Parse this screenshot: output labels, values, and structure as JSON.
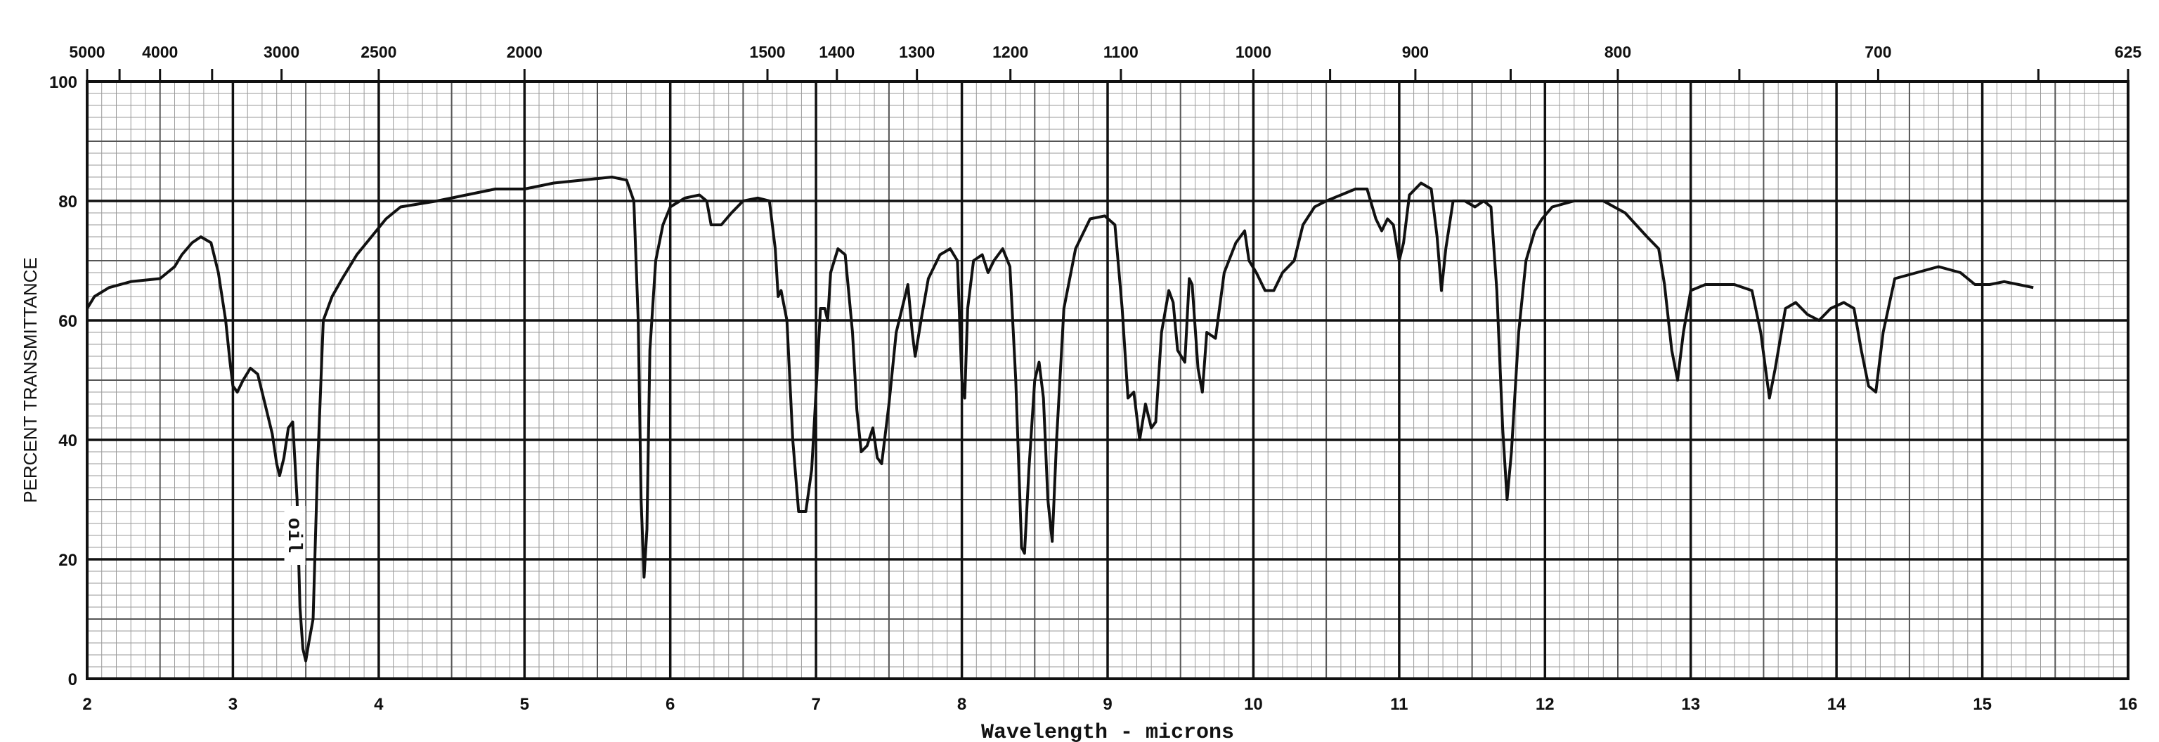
{
  "chart_data": {
    "type": "line",
    "title": "",
    "xlabel": "Wavelength - microns",
    "ylabel": "PERCENT TRANSMITTANCE",
    "xlim": [
      2,
      16
    ],
    "ylim": [
      0,
      100
    ],
    "grid": true,
    "x_ticks": [
      "2",
      "3",
      "4",
      "5",
      "6",
      "7",
      "8",
      "9",
      "10",
      "11",
      "12",
      "13",
      "14",
      "15",
      "16"
    ],
    "y_ticks": [
      "0",
      "20",
      "40",
      "60",
      "80",
      "100"
    ],
    "top_axis": {
      "label": "",
      "labels": [
        "5000",
        "4000",
        "3000",
        "2500",
        "2000",
        "1500",
        "1400",
        "1300",
        "1200",
        "1100",
        "1000",
        "900",
        "800",
        "700",
        "625"
      ]
    },
    "annotation": "oil",
    "series": [
      {
        "name": "",
        "color": "#111111",
        "points": [
          [
            2.0,
            62
          ],
          [
            2.05,
            64
          ],
          [
            2.15,
            65.5
          ],
          [
            2.3,
            66.5
          ],
          [
            2.5,
            67
          ],
          [
            2.6,
            69
          ],
          [
            2.65,
            71
          ],
          [
            2.72,
            73
          ],
          [
            2.78,
            74
          ],
          [
            2.85,
            73
          ],
          [
            2.9,
            68
          ],
          [
            2.95,
            60
          ],
          [
            2.98,
            53
          ],
          [
            3.0,
            49
          ],
          [
            3.03,
            48
          ],
          [
            3.07,
            50
          ],
          [
            3.12,
            52
          ],
          [
            3.17,
            51
          ],
          [
            3.22,
            46
          ],
          [
            3.27,
            41
          ],
          [
            3.3,
            36
          ],
          [
            3.32,
            34
          ],
          [
            3.35,
            37
          ],
          [
            3.38,
            42
          ],
          [
            3.41,
            43
          ],
          [
            3.44,
            30
          ],
          [
            3.46,
            12
          ],
          [
            3.48,
            5
          ],
          [
            3.5,
            3
          ],
          [
            3.52,
            6
          ],
          [
            3.55,
            10
          ],
          [
            3.58,
            35
          ],
          [
            3.62,
            60
          ],
          [
            3.68,
            64
          ],
          [
            3.75,
            67
          ],
          [
            3.85,
            71
          ],
          [
            3.95,
            74
          ],
          [
            4.05,
            77
          ],
          [
            4.15,
            79
          ],
          [
            4.4,
            80
          ],
          [
            4.6,
            81
          ],
          [
            4.8,
            82
          ],
          [
            5.0,
            82
          ],
          [
            5.2,
            83
          ],
          [
            5.4,
            83.5
          ],
          [
            5.6,
            84
          ],
          [
            5.7,
            83.5
          ],
          [
            5.75,
            80
          ],
          [
            5.78,
            60
          ],
          [
            5.8,
            30
          ],
          [
            5.82,
            17
          ],
          [
            5.84,
            25
          ],
          [
            5.86,
            55
          ],
          [
            5.9,
            70
          ],
          [
            5.95,
            76
          ],
          [
            6.0,
            79
          ],
          [
            6.1,
            80.5
          ],
          [
            6.2,
            81
          ],
          [
            6.25,
            80
          ],
          [
            6.28,
            76
          ],
          [
            6.35,
            76
          ],
          [
            6.42,
            78
          ],
          [
            6.5,
            80
          ],
          [
            6.6,
            80.5
          ],
          [
            6.68,
            80
          ],
          [
            6.72,
            72
          ],
          [
            6.74,
            64
          ],
          [
            6.76,
            65
          ],
          [
            6.8,
            60
          ],
          [
            6.84,
            40
          ],
          [
            6.88,
            28
          ],
          [
            6.93,
            28
          ],
          [
            6.97,
            35
          ],
          [
            7.0,
            48
          ],
          [
            7.03,
            62
          ],
          [
            7.06,
            62
          ],
          [
            7.08,
            60
          ],
          [
            7.1,
            68
          ],
          [
            7.15,
            72
          ],
          [
            7.2,
            71
          ],
          [
            7.25,
            58
          ],
          [
            7.28,
            45
          ],
          [
            7.31,
            38
          ],
          [
            7.35,
            39
          ],
          [
            7.39,
            42
          ],
          [
            7.42,
            37
          ],
          [
            7.45,
            36
          ],
          [
            7.5,
            46
          ],
          [
            7.55,
            58
          ],
          [
            7.6,
            63
          ],
          [
            7.63,
            66
          ],
          [
            7.66,
            58
          ],
          [
            7.68,
            54
          ],
          [
            7.72,
            60
          ],
          [
            7.77,
            67
          ],
          [
            7.85,
            71
          ],
          [
            7.92,
            72
          ],
          [
            7.97,
            70
          ],
          [
            8.0,
            50
          ],
          [
            8.02,
            47
          ],
          [
            8.04,
            62
          ],
          [
            8.08,
            70
          ],
          [
            8.14,
            71
          ],
          [
            8.18,
            68
          ],
          [
            8.22,
            70
          ],
          [
            8.28,
            72
          ],
          [
            8.33,
            69
          ],
          [
            8.37,
            50
          ],
          [
            8.41,
            22
          ],
          [
            8.43,
            21
          ],
          [
            8.46,
            35
          ],
          [
            8.5,
            50
          ],
          [
            8.53,
            53
          ],
          [
            8.56,
            47
          ],
          [
            8.59,
            30
          ],
          [
            8.62,
            23
          ],
          [
            8.65,
            40
          ],
          [
            8.7,
            62
          ],
          [
            8.78,
            72
          ],
          [
            8.88,
            77
          ],
          [
            8.98,
            77.5
          ],
          [
            9.05,
            76
          ],
          [
            9.1,
            62
          ],
          [
            9.14,
            47
          ],
          [
            9.18,
            48
          ],
          [
            9.22,
            40
          ],
          [
            9.26,
            46
          ],
          [
            9.3,
            42
          ],
          [
            9.33,
            43
          ],
          [
            9.37,
            58
          ],
          [
            9.42,
            65
          ],
          [
            9.45,
            63
          ],
          [
            9.48,
            55
          ],
          [
            9.53,
            53
          ],
          [
            9.56,
            67
          ],
          [
            9.58,
            66
          ],
          [
            9.62,
            52
          ],
          [
            9.65,
            48
          ],
          [
            9.68,
            58
          ],
          [
            9.74,
            57
          ],
          [
            9.8,
            68
          ],
          [
            9.88,
            73
          ],
          [
            9.94,
            75
          ],
          [
            9.97,
            70
          ],
          [
            10.02,
            68
          ],
          [
            10.08,
            65
          ],
          [
            10.14,
            65
          ],
          [
            10.2,
            68
          ],
          [
            10.28,
            70
          ],
          [
            10.34,
            76
          ],
          [
            10.42,
            79
          ],
          [
            10.5,
            80
          ],
          [
            10.6,
            81
          ],
          [
            10.7,
            82
          ],
          [
            10.78,
            82
          ],
          [
            10.84,
            77
          ],
          [
            10.88,
            75
          ],
          [
            10.92,
            77
          ],
          [
            10.96,
            76
          ],
          [
            11.0,
            70
          ],
          [
            11.03,
            73
          ],
          [
            11.07,
            81
          ],
          [
            11.15,
            83
          ],
          [
            11.22,
            82
          ],
          [
            11.26,
            74
          ],
          [
            11.29,
            65
          ],
          [
            11.32,
            72
          ],
          [
            11.37,
            80
          ],
          [
            11.45,
            80
          ],
          [
            11.52,
            79
          ],
          [
            11.58,
            80
          ],
          [
            11.63,
            79
          ],
          [
            11.67,
            65
          ],
          [
            11.71,
            42
          ],
          [
            11.74,
            30
          ],
          [
            11.77,
            38
          ],
          [
            11.82,
            58
          ],
          [
            11.87,
            70
          ],
          [
            11.93,
            75
          ],
          [
            11.98,
            77
          ],
          [
            12.05,
            79
          ],
          [
            12.2,
            80
          ],
          [
            12.4,
            80
          ],
          [
            12.55,
            78
          ],
          [
            12.7,
            74
          ],
          [
            12.78,
            72
          ],
          [
            12.82,
            66
          ],
          [
            12.87,
            55
          ],
          [
            12.91,
            50
          ],
          [
            12.95,
            58
          ],
          [
            13.0,
            65
          ],
          [
            13.1,
            66
          ],
          [
            13.3,
            66
          ],
          [
            13.42,
            65
          ],
          [
            13.48,
            58
          ],
          [
            13.54,
            47
          ],
          [
            13.58,
            52
          ],
          [
            13.65,
            62
          ],
          [
            13.72,
            63
          ],
          [
            13.8,
            61
          ],
          [
            13.88,
            60
          ],
          [
            13.96,
            62
          ],
          [
            14.05,
            63
          ],
          [
            14.12,
            62
          ],
          [
            14.17,
            55
          ],
          [
            14.22,
            49
          ],
          [
            14.27,
            48
          ],
          [
            14.32,
            58
          ],
          [
            14.4,
            67
          ],
          [
            14.55,
            68
          ],
          [
            14.7,
            69
          ],
          [
            14.85,
            68
          ],
          [
            14.95,
            66
          ],
          [
            15.05,
            66
          ],
          [
            15.15,
            66.5
          ],
          [
            15.25,
            66
          ],
          [
            15.35,
            65.5
          ]
        ]
      }
    ]
  }
}
